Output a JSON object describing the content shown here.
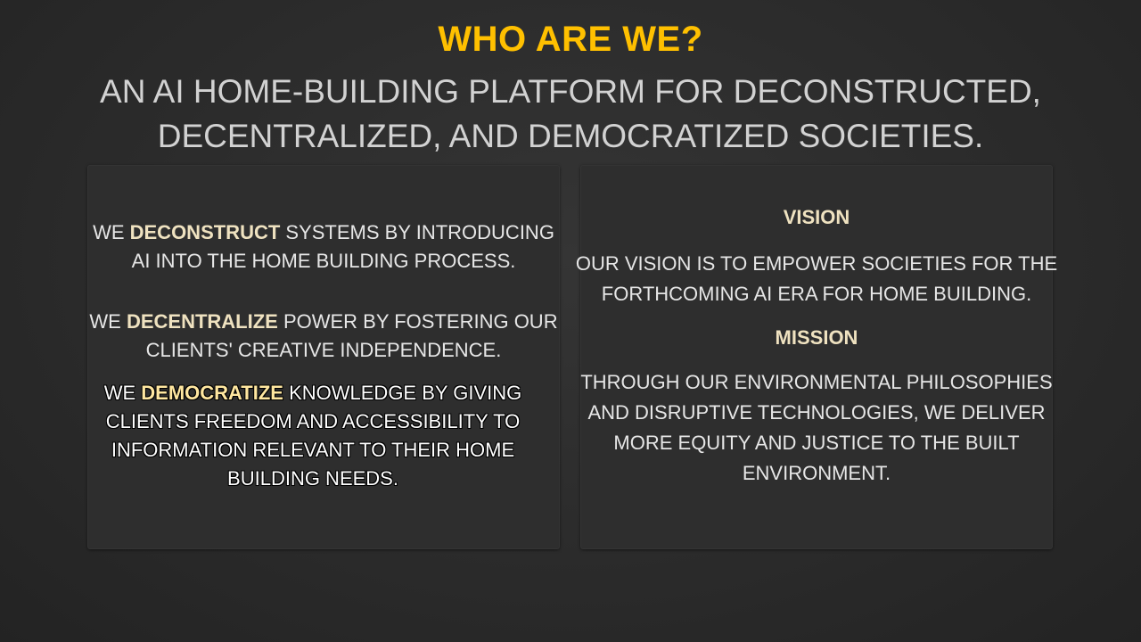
{
  "slide": {
    "title": "WHO ARE WE?",
    "subtitle_line1": "AN AI HOME-BUILDING PLATFORM FOR DECONSTRUCTED,",
    "subtitle_line2": "DECENTRALIZED, AND DEMOCRATIZED SOCIETIES."
  },
  "left_panel": {
    "p1": {
      "pre": "WE ",
      "keyword": "DECONSTRUCT",
      "line1_rest": " SYSTEMS BY INTRODUCING",
      "line2": "AI INTO THE HOME BUILDING PROCESS."
    },
    "p2": {
      "pre": "WE ",
      "keyword": "DECENTRALIZE",
      "line1_rest": " POWER BY FOSTERING OUR",
      "line2": "CLIENTS' CREATIVE INDEPENDENCE."
    },
    "p3": {
      "pre": "WE ",
      "keyword": "DEMOCRATIZE",
      "line1_rest": " KNOWLEDGE BY GIVING",
      "line2": "CLIENTS FREEDOM AND ACCESSIBILITY TO",
      "line3": "INFORMATION RELEVANT TO THEIR HOME",
      "line4": "BUILDING NEEDS."
    }
  },
  "right_panel": {
    "vision_heading": "VISION",
    "vision_line1": "OUR VISION IS TO EMPOWER SOCIETIES FOR THE",
    "vision_line2": "FORTHCOMING AI ERA FOR HOME BUILDING.",
    "mission_heading": "MISSION",
    "mission_line1": "THROUGH OUR ENVIRONMENTAL PHILOSOPHIES",
    "mission_line2": "AND DISRUPTIVE TECHNOLOGIES, WE DELIVER",
    "mission_line3": "MORE EQUITY AND JUSTICE TO THE BUILT",
    "mission_line4": "ENVIRONMENT."
  },
  "colors": {
    "background": "#2b2b2b",
    "title": "#ffc000",
    "subtitle": "#d2d2d2",
    "highlight": "#efe2c0",
    "body_text": "#e6e6e6"
  }
}
